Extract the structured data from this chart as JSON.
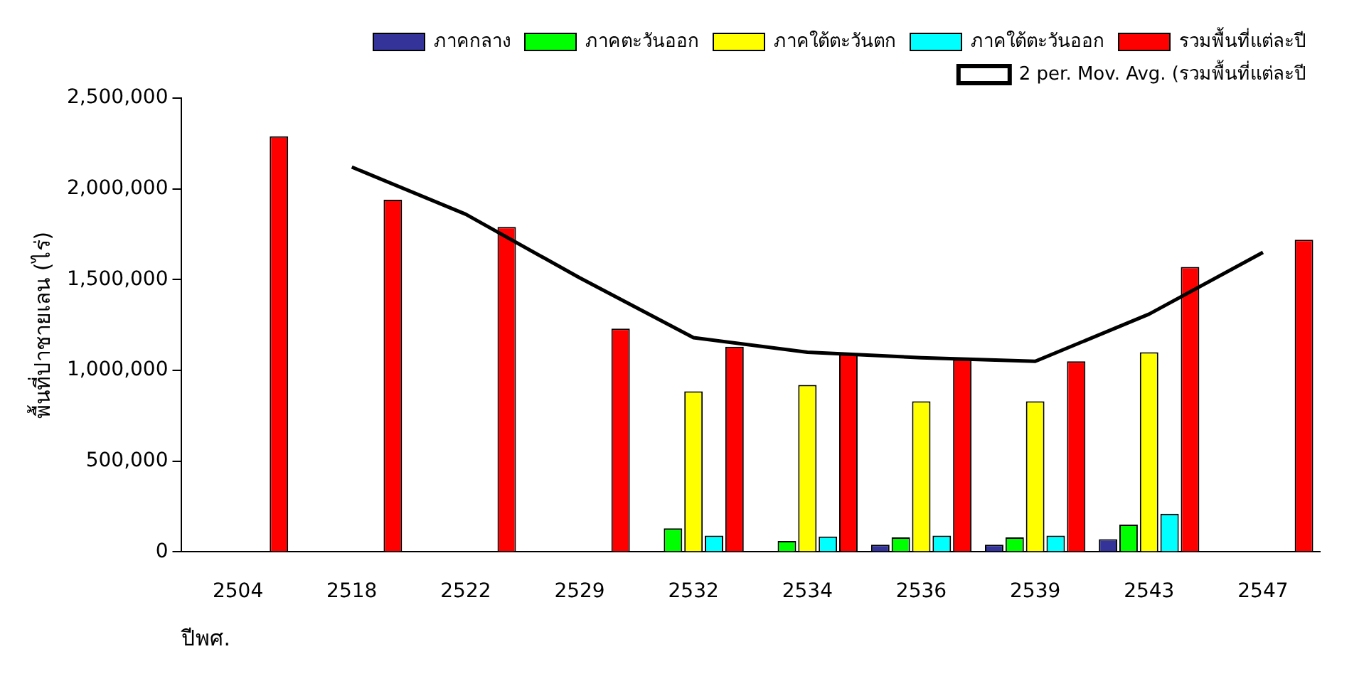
{
  "chart_data": {
    "type": "bar",
    "ylabel": "พื้นที่ปาชายเลน (ไร่)",
    "xlabel": "ปีพศ.",
    "categories": [
      "2504",
      "2518",
      "2522",
      "2529",
      "2532",
      "2534",
      "2536",
      "2539",
      "2543",
      "2547"
    ],
    "series": [
      {
        "name": "ภาคกลาง",
        "color": "#333399",
        "values": [
          null,
          null,
          null,
          null,
          null,
          null,
          40000,
          40000,
          70000,
          null
        ]
      },
      {
        "name": "ภาคตะวันออก",
        "color": "#00ff00",
        "values": [
          null,
          null,
          null,
          null,
          130000,
          60000,
          80000,
          80000,
          150000,
          null
        ]
      },
      {
        "name": "ภาคใต้ตะวันตก",
        "color": "#ffff00",
        "values": [
          null,
          null,
          null,
          null,
          885000,
          920000,
          830000,
          830000,
          1100000,
          null
        ]
      },
      {
        "name": "ภาคใต้ตะวันออก",
        "color": "#00ffff",
        "values": [
          null,
          null,
          null,
          null,
          90000,
          85000,
          90000,
          90000,
          210000,
          null
        ]
      },
      {
        "name": "รวมพื้นที่แต่ละปี",
        "color": "#ff0000",
        "values": [
          2290000,
          1940000,
          1790000,
          1230000,
          1130000,
          1090000,
          1060000,
          1050000,
          1570000,
          1720000
        ]
      },
      {
        "name": "2 per. Mov. Avg. (รวมพื้นที่แต่ละปี",
        "type": "line",
        "color": "#000000",
        "marker": "none",
        "values": [
          null,
          2120000,
          1860000,
          1510000,
          1180000,
          1100000,
          1070000,
          1050000,
          1310000,
          1650000
        ]
      }
    ],
    "ylim": [
      0,
      2500000
    ],
    "yticks": [
      {
        "value": 0,
        "label": "0"
      },
      {
        "value": 500000,
        "label": "500,000"
      },
      {
        "value": 1000000,
        "label": "1,000,000"
      },
      {
        "value": 1500000,
        "label": "1,500,000"
      },
      {
        "value": 2000000,
        "label": "2,000,000"
      },
      {
        "value": 2500000,
        "label": "2,500,000"
      }
    ],
    "grid": false,
    "legend": "top right"
  }
}
